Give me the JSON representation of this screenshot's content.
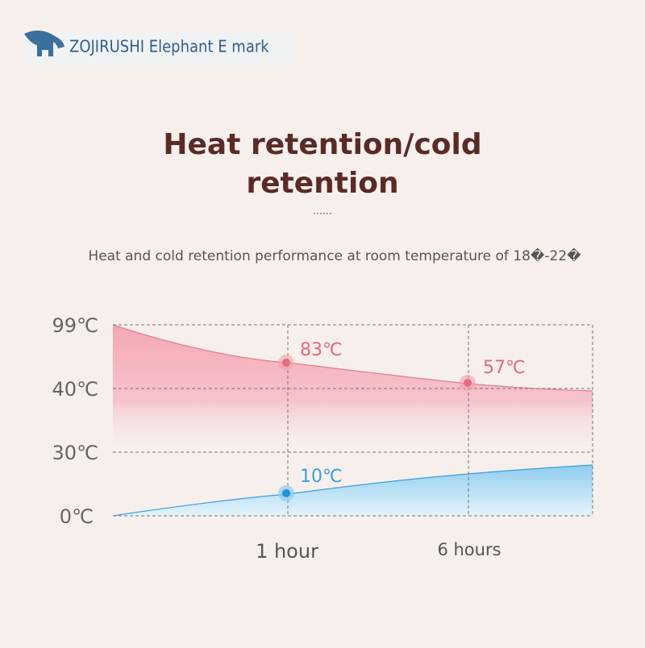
{
  "brand": "ZOJIRUSHI Elephant E mark",
  "title_line1": "Heat retention/cold",
  "title_line2": "retention",
  "subtitle": "Heat and cold retention performance at room temperature of 18�-22�",
  "chart": {
    "y_labels": [
      "99℃",
      "40℃",
      "30℃",
      "0℃"
    ],
    "x_labels": [
      "1 hour",
      "6 hours"
    ],
    "point_labels": [
      "83℃",
      "57℃",
      "10℃"
    ]
  }
}
